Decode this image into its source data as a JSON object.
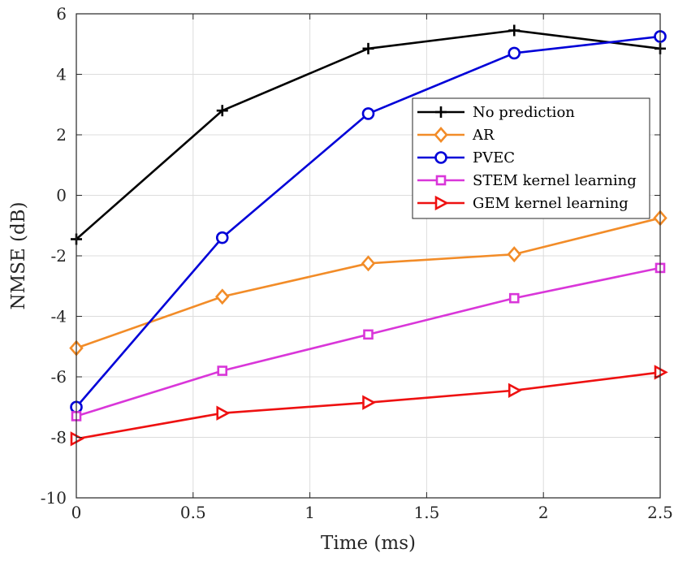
{
  "chart_data": {
    "type": "line",
    "xlabel": "Time (ms)",
    "ylabel": "NMSE (dB)",
    "xlim": [
      0,
      2.5
    ],
    "ylim": [
      -10,
      6
    ],
    "xticks": [
      0,
      0.5,
      1,
      1.5,
      2,
      2.5
    ],
    "xtick_labels": [
      "0",
      "0.5",
      "1",
      "1.5",
      "2",
      "2.5"
    ],
    "yticks": [
      -10,
      -8,
      -6,
      -4,
      -2,
      0,
      2,
      4,
      6
    ],
    "ytick_labels": [
      "-10",
      "-8",
      "-6",
      "-4",
      "-2",
      "0",
      "2",
      "4",
      "6"
    ],
    "grid": true,
    "legend_position": "top-right",
    "x": [
      0,
      0.625,
      1.25,
      1.875,
      2.5
    ],
    "series": [
      {
        "name": "No prediction",
        "color": "#000000",
        "marker": "plus",
        "values": [
          -1.45,
          2.8,
          4.85,
          5.45,
          4.85
        ]
      },
      {
        "name": "AR",
        "color": "#f28c28",
        "marker": "diamond",
        "values": [
          -5.05,
          -3.35,
          -2.25,
          -1.95,
          -0.75
        ]
      },
      {
        "name": "PVEC",
        "color": "#0000d8",
        "marker": "circle",
        "values": [
          -7.0,
          -1.4,
          2.7,
          4.7,
          5.25
        ]
      },
      {
        "name": "STEM kernel learning",
        "color": "#d936d9",
        "marker": "square",
        "values": [
          -7.3,
          -5.8,
          -4.6,
          -3.4,
          -2.4
        ]
      },
      {
        "name": "GEM kernel learning",
        "color": "#ee1111",
        "marker": "triangle-right",
        "values": [
          -8.05,
          -7.2,
          -6.85,
          -6.45,
          -5.85
        ]
      }
    ]
  }
}
